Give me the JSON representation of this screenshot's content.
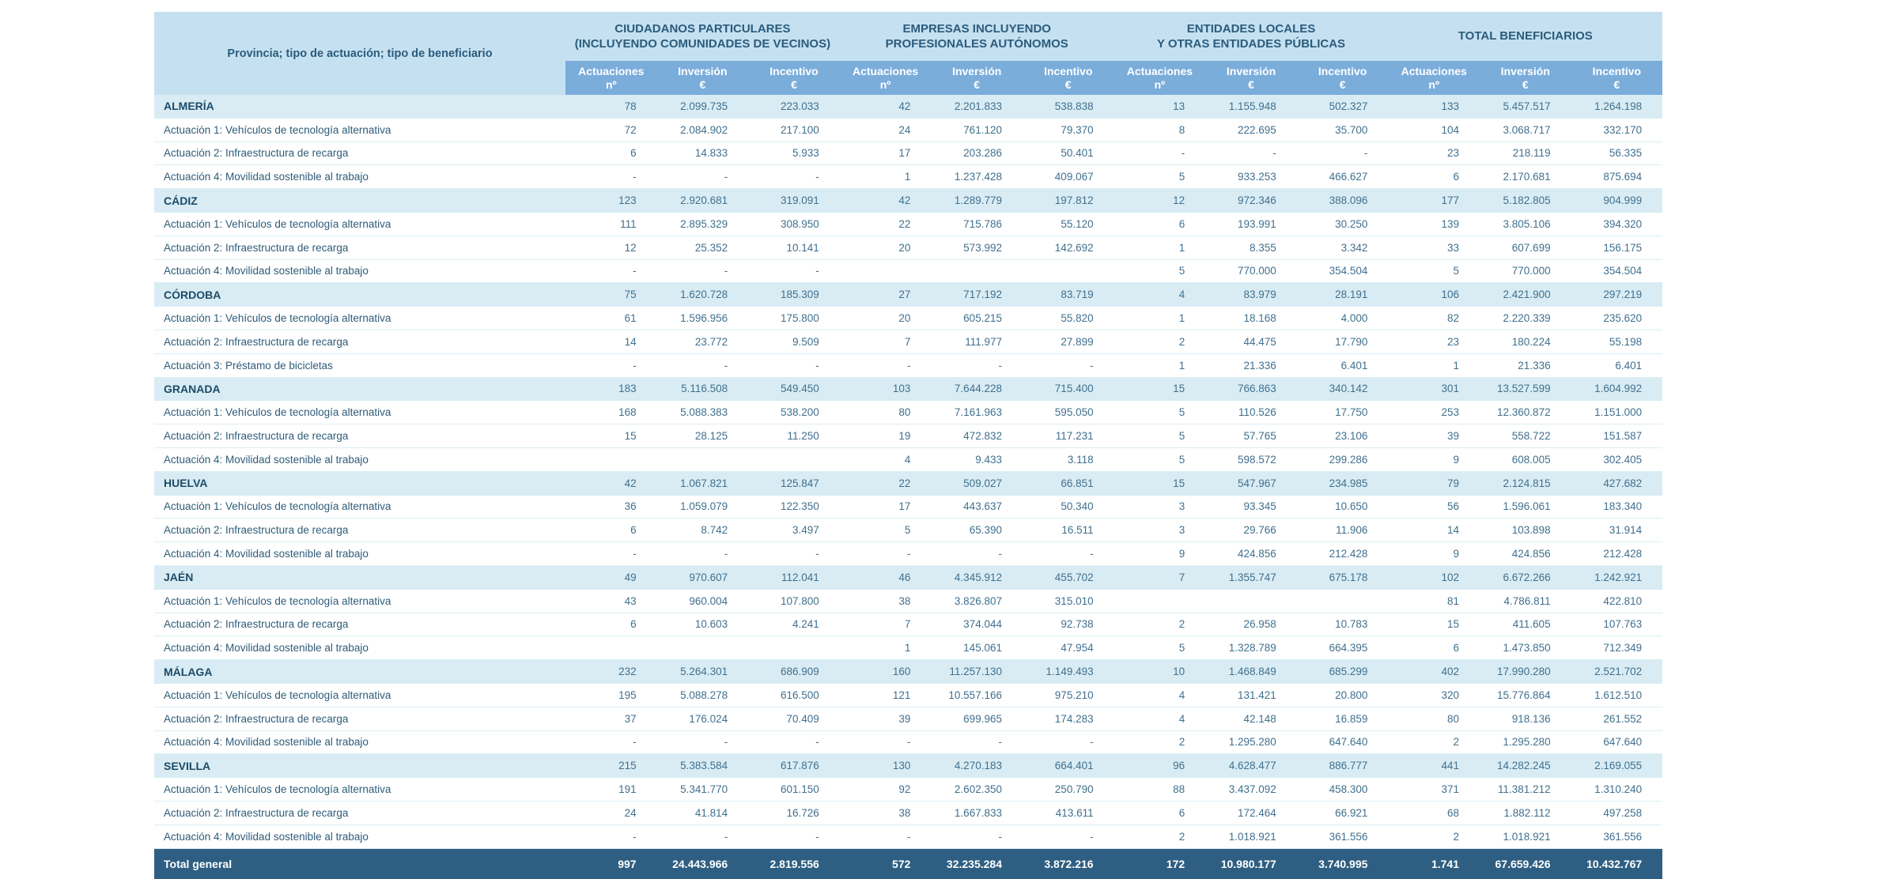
{
  "table": {
    "row_header": "Provincia; tipo de actuación; tipo de beneficiario",
    "groups": [
      {
        "label": "CIUDADANOS PARTICULARES\n(INCLUYENDO COMUNIDADES DE VECINOS)"
      },
      {
        "label": "EMPRESAS INCLUYENDO\nPROFESIONALES AUTÓNOMOS"
      },
      {
        "label": "ENTIDADES LOCALES\nY OTRAS ENTIDADES PÚBLICAS"
      },
      {
        "label": "TOTAL BENEFICIARIOS"
      }
    ],
    "sub_columns": [
      {
        "label": "Actuaciones",
        "unit": "nº"
      },
      {
        "label": "Inversión",
        "unit": "€"
      },
      {
        "label": "Incentivo",
        "unit": "€"
      }
    ],
    "colors": {
      "header_bg": "#c5e1f1",
      "subheader_bg": "#7baddb",
      "province_row_bg": "#d9ecf4",
      "total_row_bg": "#2e5f82",
      "header_text": "#2b5b7c",
      "data_text": "#40708e",
      "row_border": "#ddeef6"
    },
    "rows": [
      {
        "type": "province",
        "label": "ALMERÍA",
        "values": [
          "78",
          "2.099.735",
          "223.033",
          "42",
          "2.201.833",
          "538.838",
          "13",
          "1.155.948",
          "502.327",
          "133",
          "5.457.517",
          "1.264.198"
        ]
      },
      {
        "type": "detail",
        "label": "Actuación 1: Vehículos de tecnología alternativa",
        "values": [
          "72",
          "2.084.902",
          "217.100",
          "24",
          "761.120",
          "79.370",
          "8",
          "222.695",
          "35.700",
          "104",
          "3.068.717",
          "332.170"
        ]
      },
      {
        "type": "detail",
        "label": "Actuación 2: Infraestructura de recarga",
        "values": [
          "6",
          "14.833",
          "5.933",
          "17",
          "203.286",
          "50.401",
          "-",
          "-",
          "-",
          "23",
          "218.119",
          "56.335"
        ]
      },
      {
        "type": "detail",
        "label": "Actuación 4: Movilidad sostenible al trabajo",
        "values": [
          "-",
          "-",
          "-",
          "1",
          "1.237.428",
          "409.067",
          "5",
          "933.253",
          "466.627",
          "6",
          "2.170.681",
          "875.694"
        ]
      },
      {
        "type": "province",
        "label": "CÁDIZ",
        "values": [
          "123",
          "2.920.681",
          "319.091",
          "42",
          "1.289.779",
          "197.812",
          "12",
          "972.346",
          "388.096",
          "177",
          "5.182.805",
          "904.999"
        ]
      },
      {
        "type": "detail",
        "label": "Actuación 1: Vehículos de tecnología alternativa",
        "values": [
          "111",
          "2.895.329",
          "308.950",
          "22",
          "715.786",
          "55.120",
          "6",
          "193.991",
          "30.250",
          "139",
          "3.805.106",
          "394.320"
        ]
      },
      {
        "type": "detail",
        "label": "Actuación 2: Infraestructura de recarga",
        "values": [
          "12",
          "25.352",
          "10.141",
          "20",
          "573.992",
          "142.692",
          "1",
          "8.355",
          "3.342",
          "33",
          "607.699",
          "156.175"
        ]
      },
      {
        "type": "detail",
        "label": "Actuación 4: Movilidad sostenible al trabajo",
        "values": [
          "-",
          "-",
          "-",
          "",
          "",
          "",
          "5",
          "770.000",
          "354.504",
          "5",
          "770.000",
          "354.504"
        ]
      },
      {
        "type": "province",
        "label": "CÓRDOBA",
        "values": [
          "75",
          "1.620.728",
          "185.309",
          "27",
          "717.192",
          "83.719",
          "4",
          "83.979",
          "28.191",
          "106",
          "2.421.900",
          "297.219"
        ]
      },
      {
        "type": "detail",
        "label": "Actuación 1: Vehículos de tecnología alternativa",
        "values": [
          "61",
          "1.596.956",
          "175.800",
          "20",
          "605.215",
          "55.820",
          "1",
          "18.168",
          "4.000",
          "82",
          "2.220.339",
          "235.620"
        ]
      },
      {
        "type": "detail",
        "label": "Actuación 2: Infraestructura de recarga",
        "values": [
          "14",
          "23.772",
          "9.509",
          "7",
          "111.977",
          "27.899",
          "2",
          "44.475",
          "17.790",
          "23",
          "180.224",
          "55.198"
        ]
      },
      {
        "type": "detail",
        "label": "Actuación 3: Préstamo de bicicletas",
        "values": [
          "-",
          "-",
          "-",
          "-",
          "-",
          "-",
          "1",
          "21.336",
          "6.401",
          "1",
          "21.336",
          "6.401"
        ]
      },
      {
        "type": "province",
        "label": "GRANADA",
        "values": [
          "183",
          "5.116.508",
          "549.450",
          "103",
          "7.644.228",
          "715.400",
          "15",
          "766.863",
          "340.142",
          "301",
          "13.527.599",
          "1.604.992"
        ]
      },
      {
        "type": "detail",
        "label": "Actuación 1: Vehículos de tecnología alternativa",
        "values": [
          "168",
          "5.088.383",
          "538.200",
          "80",
          "7.161.963",
          "595.050",
          "5",
          "110.526",
          "17.750",
          "253",
          "12.360.872",
          "1.151.000"
        ]
      },
      {
        "type": "detail",
        "label": "Actuación 2: Infraestructura de recarga",
        "values": [
          "15",
          "28.125",
          "11.250",
          "19",
          "472.832",
          "117.231",
          "5",
          "57.765",
          "23.106",
          "39",
          "558.722",
          "151.587"
        ]
      },
      {
        "type": "detail",
        "label": "Actuación 4: Movilidad sostenible al trabajo",
        "values": [
          "",
          "",
          "",
          "4",
          "9.433",
          "3.118",
          "5",
          "598.572",
          "299.286",
          "9",
          "608.005",
          "302.405"
        ]
      },
      {
        "type": "province",
        "label": "HUELVA",
        "values": [
          "42",
          "1.067.821",
          "125.847",
          "22",
          "509.027",
          "66.851",
          "15",
          "547.967",
          "234.985",
          "79",
          "2.124.815",
          "427.682"
        ]
      },
      {
        "type": "detail",
        "label": "Actuación 1: Vehículos de tecnología alternativa",
        "values": [
          "36",
          "1.059.079",
          "122.350",
          "17",
          "443.637",
          "50.340",
          "3",
          "93.345",
          "10.650",
          "56",
          "1.596.061",
          "183.340"
        ]
      },
      {
        "type": "detail",
        "label": "Actuación 2: Infraestructura de recarga",
        "values": [
          "6",
          "8.742",
          "3.497",
          "5",
          "65.390",
          "16.511",
          "3",
          "29.766",
          "11.906",
          "14",
          "103.898",
          "31.914"
        ]
      },
      {
        "type": "detail",
        "label": "Actuación 4: Movilidad sostenible al trabajo",
        "values": [
          "-",
          "-",
          "-",
          "-",
          "-",
          "-",
          "9",
          "424.856",
          "212.428",
          "9",
          "424.856",
          "212.428"
        ]
      },
      {
        "type": "province",
        "label": "JAÉN",
        "values": [
          "49",
          "970.607",
          "112.041",
          "46",
          "4.345.912",
          "455.702",
          "7",
          "1.355.747",
          "675.178",
          "102",
          "6.672.266",
          "1.242.921"
        ]
      },
      {
        "type": "detail",
        "label": "Actuación 1: Vehículos de tecnología alternativa",
        "values": [
          "43",
          "960.004",
          "107.800",
          "38",
          "3.826.807",
          "315.010",
          "",
          "",
          "",
          "81",
          "4.786.811",
          "422.810"
        ]
      },
      {
        "type": "detail",
        "label": "Actuación 2: Infraestructura de recarga",
        "values": [
          "6",
          "10.603",
          "4.241",
          "7",
          "374.044",
          "92.738",
          "2",
          "26.958",
          "10.783",
          "15",
          "411.605",
          "107.763"
        ]
      },
      {
        "type": "detail",
        "label": "Actuación 4: Movilidad sostenible al trabajo",
        "values": [
          "",
          "",
          "",
          "1",
          "145.061",
          "47.954",
          "5",
          "1.328.789",
          "664.395",
          "6",
          "1.473.850",
          "712.349"
        ]
      },
      {
        "type": "province",
        "label": "MÁLAGA",
        "values": [
          "232",
          "5.264.301",
          "686.909",
          "160",
          "11.257.130",
          "1.149.493",
          "10",
          "1.468.849",
          "685.299",
          "402",
          "17.990.280",
          "2.521.702"
        ]
      },
      {
        "type": "detail",
        "label": "Actuación 1: Vehículos de tecnología alternativa",
        "values": [
          "195",
          "5.088.278",
          "616.500",
          "121",
          "10.557.166",
          "975.210",
          "4",
          "131.421",
          "20.800",
          "320",
          "15.776.864",
          "1.612.510"
        ]
      },
      {
        "type": "detail",
        "label": "Actuación 2: Infraestructura de recarga",
        "values": [
          "37",
          "176.024",
          "70.409",
          "39",
          "699.965",
          "174.283",
          "4",
          "42.148",
          "16.859",
          "80",
          "918.136",
          "261.552"
        ]
      },
      {
        "type": "detail",
        "label": "Actuación 4: Movilidad sostenible al trabajo",
        "values": [
          "-",
          "-",
          "-",
          "-",
          "-",
          "-",
          "2",
          "1.295.280",
          "647.640",
          "2",
          "1.295.280",
          "647.640"
        ]
      },
      {
        "type": "province",
        "label": "SEVILLA",
        "values": [
          "215",
          "5.383.584",
          "617.876",
          "130",
          "4.270.183",
          "664.401",
          "96",
          "4.628.477",
          "886.777",
          "441",
          "14.282.245",
          "2.169.055"
        ]
      },
      {
        "type": "detail",
        "label": "Actuación 1: Vehículos de tecnología alternativa",
        "values": [
          "191",
          "5.341.770",
          "601.150",
          "92",
          "2.602.350",
          "250.790",
          "88",
          "3.437.092",
          "458.300",
          "371",
          "11.381.212",
          "1.310.240"
        ]
      },
      {
        "type": "detail",
        "label": "Actuación 2: Infraestructura de recarga",
        "values": [
          "24",
          "41.814",
          "16.726",
          "38",
          "1.667.833",
          "413.611",
          "6",
          "172.464",
          "66.921",
          "68",
          "1.882.112",
          "497.258"
        ]
      },
      {
        "type": "detail",
        "label": "Actuación 4: Movilidad sostenible al trabajo",
        "values": [
          "-",
          "-",
          "-",
          "-",
          "-",
          "-",
          "2",
          "1.018.921",
          "361.556",
          "2",
          "1.018.921",
          "361.556"
        ]
      },
      {
        "type": "total",
        "label": "Total general",
        "values": [
          "997",
          "24.443.966",
          "2.819.556",
          "572",
          "32.235.284",
          "3.872.216",
          "172",
          "10.980.177",
          "3.740.995",
          "1.741",
          "67.659.426",
          "10.432.767"
        ]
      }
    ]
  }
}
